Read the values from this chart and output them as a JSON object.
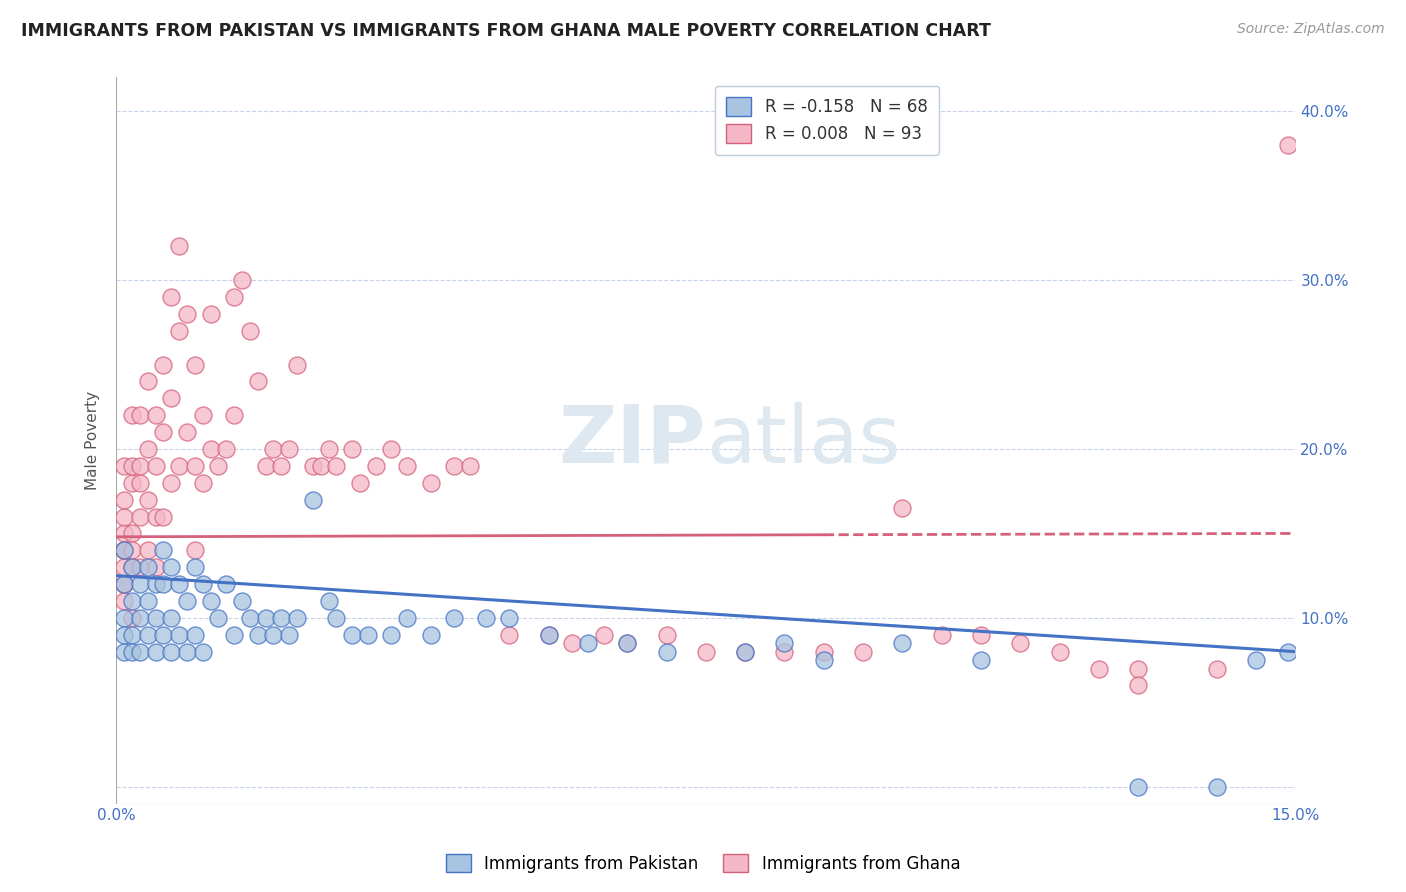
{
  "title": "IMMIGRANTS FROM PAKISTAN VS IMMIGRANTS FROM GHANA MALE POVERTY CORRELATION CHART",
  "source": "Source: ZipAtlas.com",
  "ylabel": "Male Poverty",
  "xlim": [
    0.0,
    0.15
  ],
  "ylim": [
    -0.01,
    0.42
  ],
  "pakistan_R": -0.158,
  "pakistan_N": 68,
  "ghana_R": 0.008,
  "ghana_N": 93,
  "pakistan_color": "#a8c4e0",
  "pakistan_color_dark": "#4472c4",
  "ghana_color": "#f4b8c8",
  "ghana_color_dark": "#d4607a",
  "pakistan_line_color": "#4472c4",
  "ghana_line_color": "#d4607a",
  "watermark": "ZIPAtlas",
  "legend_label_pakistan": "Immigrants from Pakistan",
  "legend_label_ghana": "Immigrants from Ghana",
  "pak_x": [
    0.001,
    0.001,
    0.001,
    0.001,
    0.001,
    0.002,
    0.002,
    0.002,
    0.002,
    0.003,
    0.003,
    0.003,
    0.004,
    0.004,
    0.004,
    0.005,
    0.005,
    0.005,
    0.006,
    0.006,
    0.006,
    0.007,
    0.007,
    0.007,
    0.008,
    0.008,
    0.009,
    0.009,
    0.01,
    0.01,
    0.011,
    0.011,
    0.012,
    0.013,
    0.014,
    0.015,
    0.016,
    0.017,
    0.018,
    0.019,
    0.02,
    0.021,
    0.022,
    0.023,
    0.025,
    0.027,
    0.028,
    0.03,
    0.032,
    0.035,
    0.037,
    0.04,
    0.043,
    0.047,
    0.05,
    0.055,
    0.06,
    0.065,
    0.07,
    0.08,
    0.085,
    0.09,
    0.1,
    0.11,
    0.13,
    0.14,
    0.145,
    0.149
  ],
  "pak_y": [
    0.14,
    0.12,
    0.1,
    0.09,
    0.08,
    0.13,
    0.11,
    0.09,
    0.08,
    0.12,
    0.1,
    0.08,
    0.13,
    0.11,
    0.09,
    0.12,
    0.1,
    0.08,
    0.14,
    0.12,
    0.09,
    0.13,
    0.1,
    0.08,
    0.12,
    0.09,
    0.11,
    0.08,
    0.13,
    0.09,
    0.12,
    0.08,
    0.11,
    0.1,
    0.12,
    0.09,
    0.11,
    0.1,
    0.09,
    0.1,
    0.09,
    0.1,
    0.09,
    0.1,
    0.17,
    0.11,
    0.1,
    0.09,
    0.09,
    0.09,
    0.1,
    0.09,
    0.1,
    0.1,
    0.1,
    0.09,
    0.085,
    0.085,
    0.08,
    0.08,
    0.085,
    0.075,
    0.085,
    0.075,
    0.0,
    0.0,
    0.075,
    0.08
  ],
  "gha_x": [
    0.001,
    0.001,
    0.001,
    0.001,
    0.001,
    0.001,
    0.001,
    0.001,
    0.001,
    0.001,
    0.002,
    0.002,
    0.002,
    0.002,
    0.002,
    0.002,
    0.002,
    0.003,
    0.003,
    0.003,
    0.003,
    0.003,
    0.004,
    0.004,
    0.004,
    0.004,
    0.005,
    0.005,
    0.005,
    0.005,
    0.006,
    0.006,
    0.006,
    0.007,
    0.007,
    0.007,
    0.008,
    0.008,
    0.008,
    0.009,
    0.009,
    0.01,
    0.01,
    0.01,
    0.011,
    0.011,
    0.012,
    0.012,
    0.013,
    0.014,
    0.015,
    0.015,
    0.016,
    0.017,
    0.018,
    0.019,
    0.02,
    0.021,
    0.022,
    0.023,
    0.025,
    0.026,
    0.027,
    0.028,
    0.03,
    0.031,
    0.033,
    0.035,
    0.037,
    0.04,
    0.043,
    0.045,
    0.05,
    0.055,
    0.058,
    0.062,
    0.065,
    0.07,
    0.075,
    0.08,
    0.085,
    0.09,
    0.095,
    0.1,
    0.105,
    0.11,
    0.115,
    0.12,
    0.125,
    0.13,
    0.13,
    0.14,
    0.149
  ],
  "gha_y": [
    0.14,
    0.15,
    0.13,
    0.12,
    0.11,
    0.16,
    0.14,
    0.12,
    0.17,
    0.19,
    0.18,
    0.15,
    0.13,
    0.22,
    0.19,
    0.14,
    0.1,
    0.18,
    0.16,
    0.13,
    0.22,
    0.19,
    0.2,
    0.17,
    0.14,
    0.24,
    0.19,
    0.16,
    0.13,
    0.22,
    0.25,
    0.21,
    0.16,
    0.29,
    0.23,
    0.18,
    0.32,
    0.27,
    0.19,
    0.28,
    0.21,
    0.25,
    0.19,
    0.14,
    0.22,
    0.18,
    0.28,
    0.2,
    0.19,
    0.2,
    0.29,
    0.22,
    0.3,
    0.27,
    0.24,
    0.19,
    0.2,
    0.19,
    0.2,
    0.25,
    0.19,
    0.19,
    0.2,
    0.19,
    0.2,
    0.18,
    0.19,
    0.2,
    0.19,
    0.18,
    0.19,
    0.19,
    0.09,
    0.09,
    0.085,
    0.09,
    0.085,
    0.09,
    0.08,
    0.08,
    0.08,
    0.08,
    0.08,
    0.165,
    0.09,
    0.09,
    0.085,
    0.08,
    0.07,
    0.07,
    0.06,
    0.07,
    0.38
  ]
}
